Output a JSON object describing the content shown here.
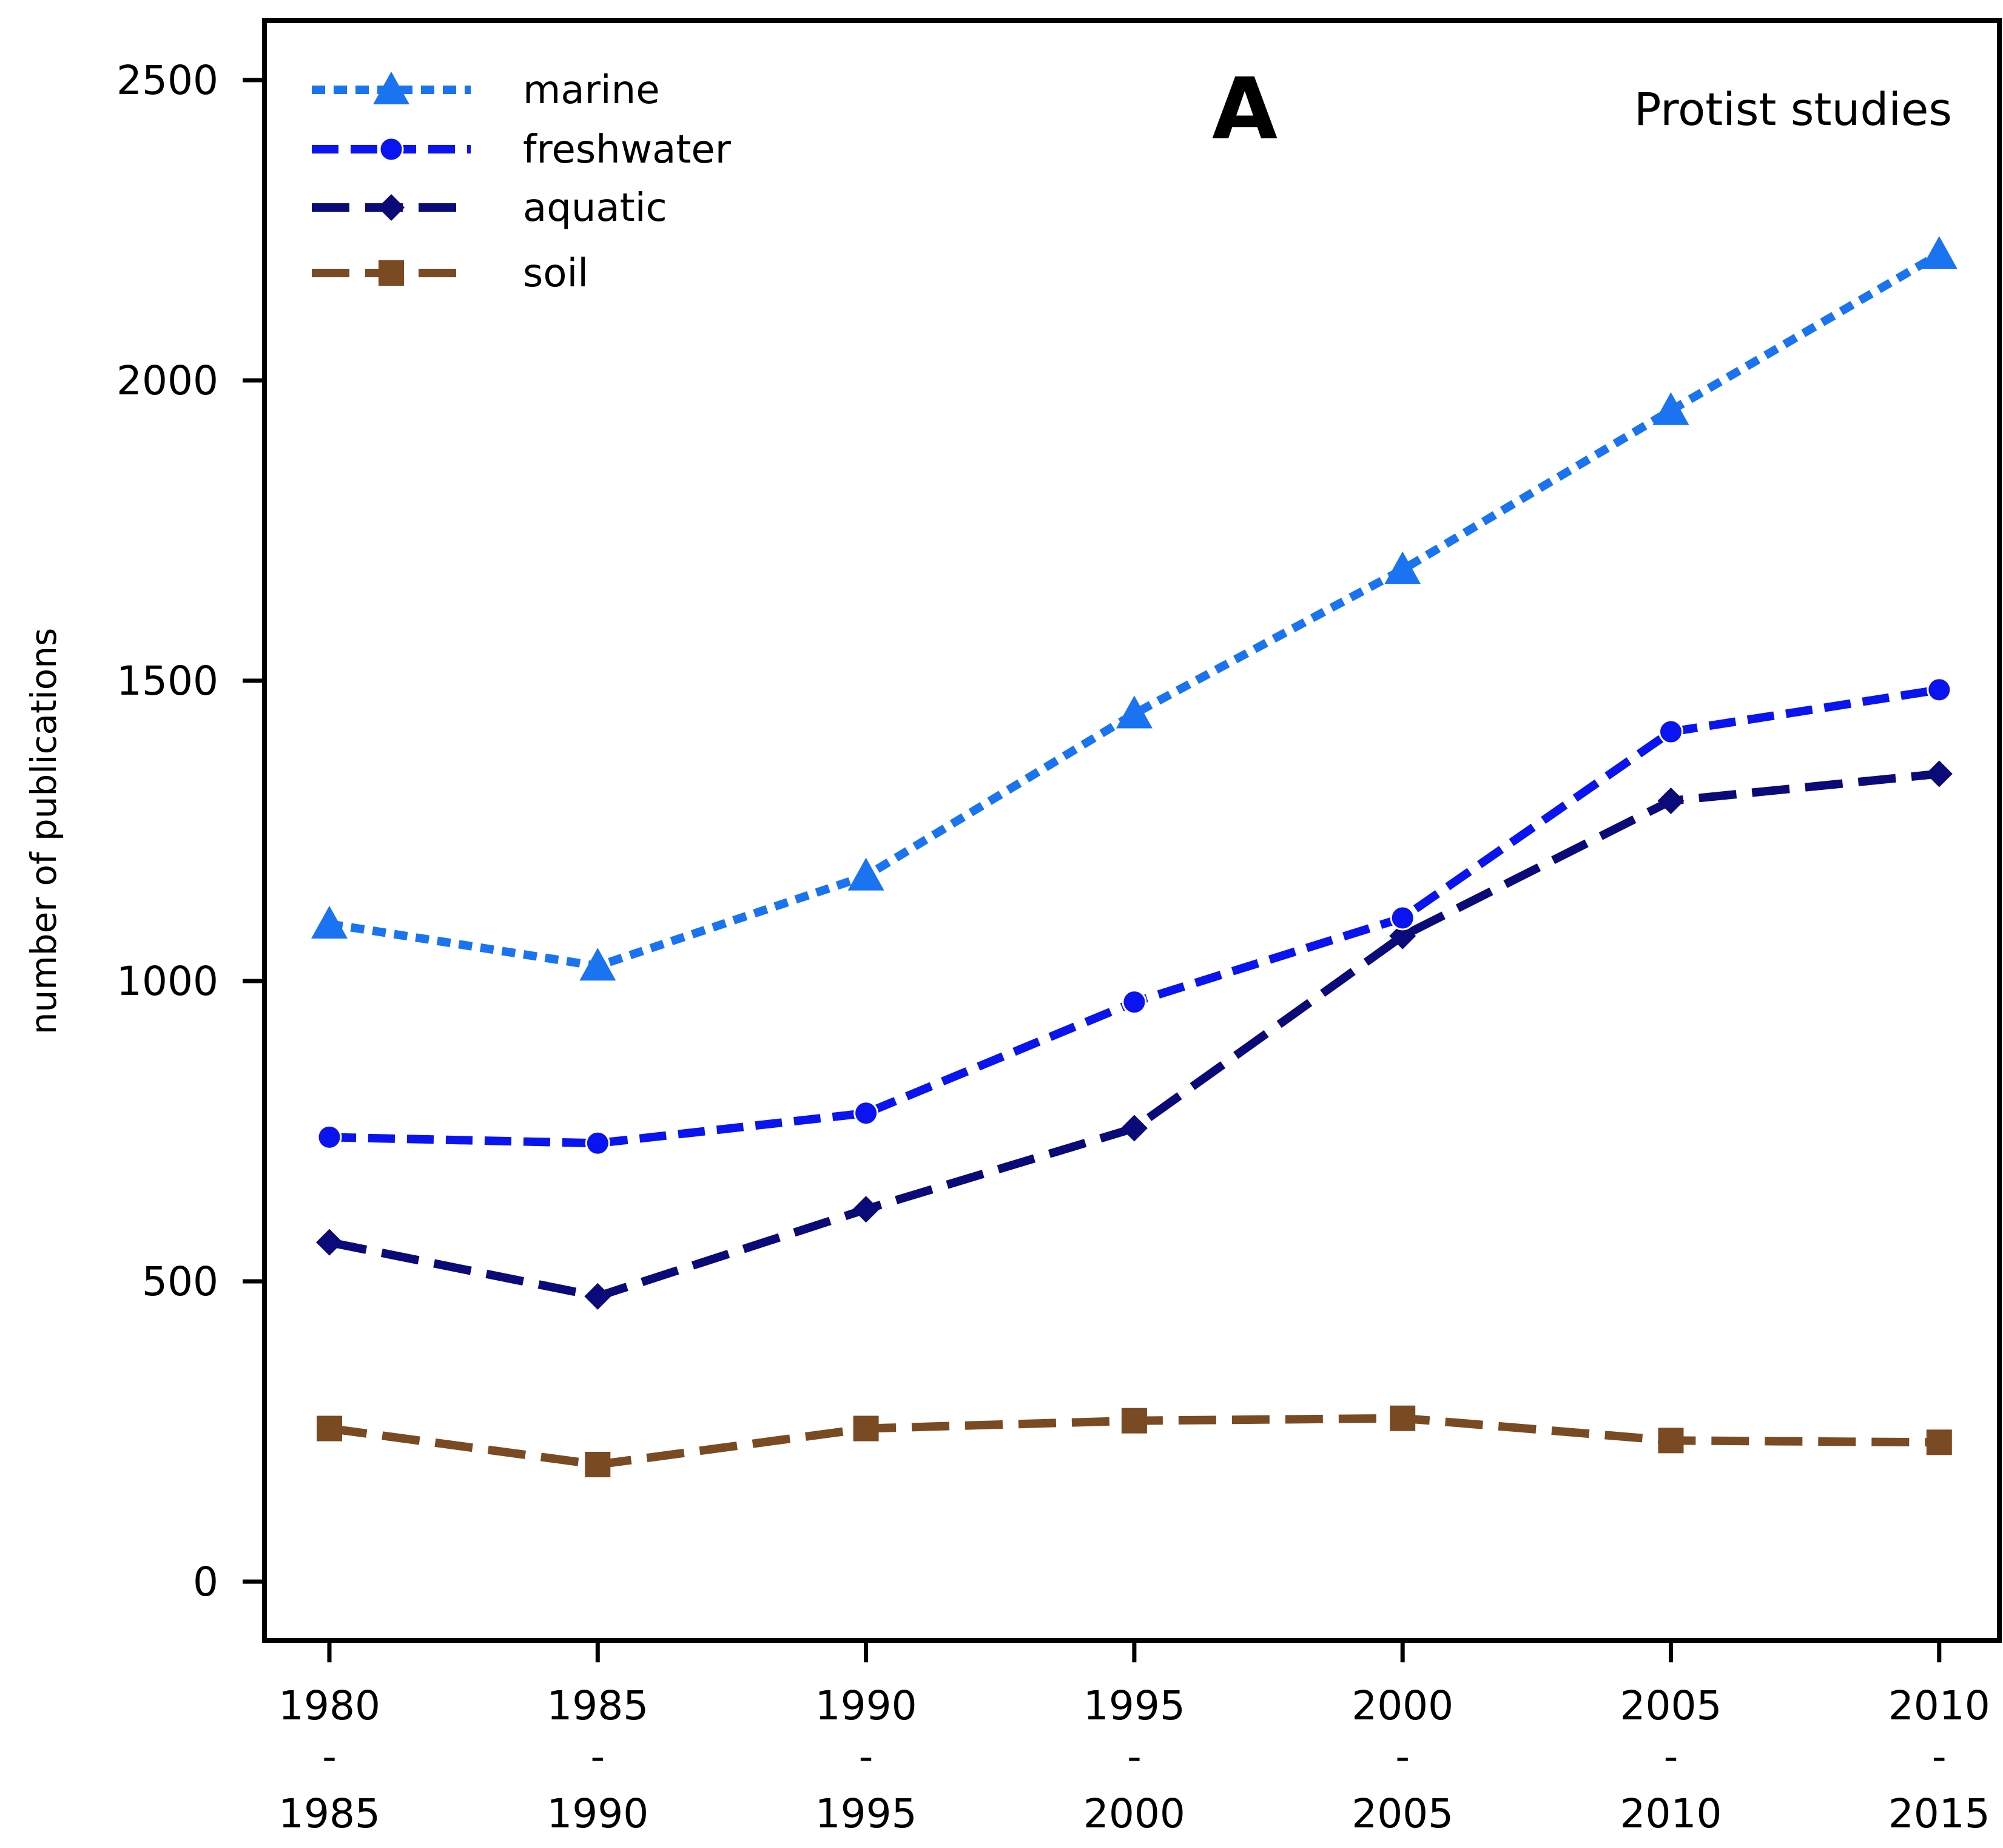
{
  "chart_data": {
    "type": "line",
    "panel_label": "A",
    "title": "Protist studies",
    "xlabel": "",
    "ylabel": "number of publications",
    "ylim": [
      -100,
      2620
    ],
    "yticks": [
      0,
      500,
      1000,
      1500,
      2000,
      2500
    ],
    "categories": [
      {
        "start": "1980",
        "sep": "-",
        "end": "1985"
      },
      {
        "start": "1985",
        "sep": "-",
        "end": "1990"
      },
      {
        "start": "1990",
        "sep": "-",
        "end": "1995"
      },
      {
        "start": "1995",
        "sep": "-",
        "end": "2000"
      },
      {
        "start": "2000",
        "sep": "-",
        "end": "2005"
      },
      {
        "start": "2005",
        "sep": "-",
        "end": "2010"
      },
      {
        "start": "2010",
        "sep": "-",
        "end": "2015"
      }
    ],
    "legend_position": "top-left",
    "grid": false,
    "series": [
      {
        "name": "marine",
        "color": "#1a73f0",
        "marker": "triangle",
        "dash": "dotted",
        "values": [
          1095,
          1025,
          1175,
          1445,
          1685,
          1950,
          2210
        ]
      },
      {
        "name": "freshwater",
        "color": "#0a14f0",
        "marker": "circle",
        "dash": "dashed",
        "values": [
          740,
          730,
          780,
          965,
          1105,
          1415,
          1485
        ]
      },
      {
        "name": "aquatic",
        "color": "#0a0a78",
        "marker": "diamond",
        "dash": "longdash",
        "values": [
          565,
          475,
          620,
          755,
          1075,
          1300,
          1345
        ]
      },
      {
        "name": "soil",
        "color": "#7a4a22",
        "marker": "square",
        "dash": "longdash",
        "values": [
          255,
          195,
          255,
          268,
          272,
          235,
          232
        ]
      }
    ]
  }
}
